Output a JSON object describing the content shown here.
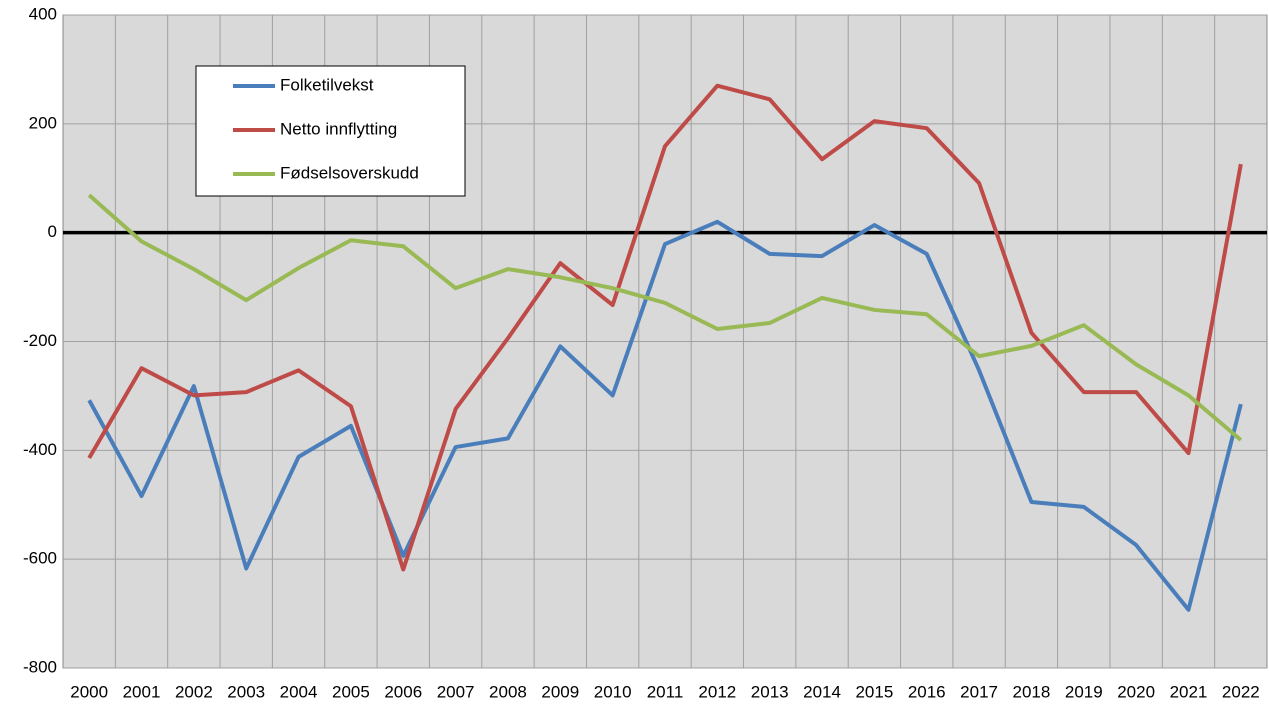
{
  "chart_data": {
    "type": "line",
    "categories": [
      "2000",
      "2001",
      "2002",
      "2003",
      "2004",
      "2005",
      "2006",
      "2007",
      "2008",
      "2009",
      "2010",
      "2011",
      "2012",
      "2013",
      "2014",
      "2015",
      "2016",
      "2017",
      "2018",
      "2019",
      "2020",
      "2021",
      "2022"
    ],
    "series": [
      {
        "name": "Folketilvekst",
        "color": "#4a7ebb",
        "values": [
          -308,
          -484,
          -282,
          -617,
          -412,
          -355,
          -594,
          -394,
          -378,
          -209,
          -299,
          -21,
          20,
          -39,
          -43,
          14,
          -39,
          -253,
          -495,
          -504,
          -574,
          -693,
          -315
        ]
      },
      {
        "name": "Netto innflytting",
        "color": "#be4b48",
        "values": [
          -414,
          -249,
          -299,
          -293,
          -253,
          -319,
          -619,
          -324,
          -194,
          -56,
          -133,
          159,
          270,
          245,
          135,
          205,
          192,
          91,
          -184,
          -293,
          -293,
          -405,
          126
        ]
      },
      {
        "name": "Fødselsoverskudd",
        "color": "#98b954",
        "values": [
          69,
          -16,
          -67,
          -124,
          -65,
          -14,
          -25,
          -102,
          -67,
          -82,
          -102,
          -129,
          -177,
          -166,
          -120,
          -142,
          -150,
          -227,
          -208,
          -170,
          -242,
          -299,
          -381
        ]
      }
    ],
    "ylim": [
      -800,
      400
    ],
    "yticks": [
      -800,
      -600,
      -400,
      -200,
      0,
      200,
      400
    ],
    "grid": true
  }
}
